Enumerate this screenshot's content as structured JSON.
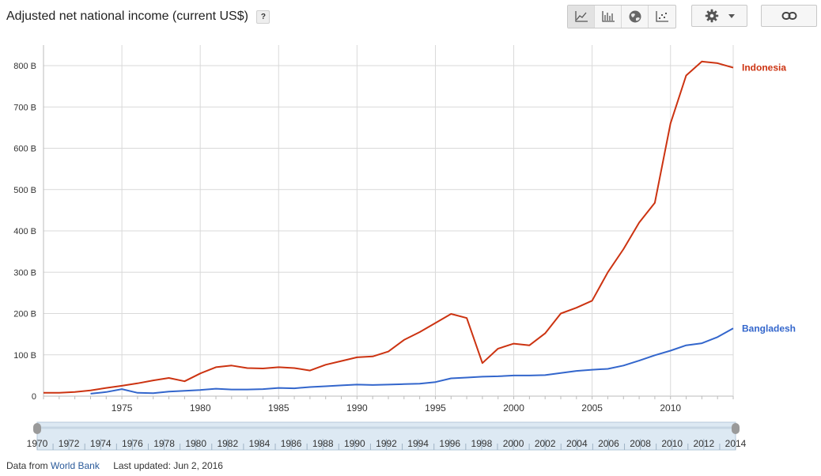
{
  "header": {
    "title": "Adjusted net national income (current US$)",
    "help_label": "?"
  },
  "toolbar": {
    "chart_types": [
      {
        "icon": "line-chart-icon",
        "active": true
      },
      {
        "icon": "bar-chart-icon",
        "active": false
      },
      {
        "icon": "globe-icon",
        "active": false
      },
      {
        "icon": "scatter-chart-icon",
        "active": false
      }
    ],
    "settings_icon": "gear-icon",
    "link_icon": "link-icon"
  },
  "footer": {
    "source_prefix": "Data from",
    "source_link": "World Bank",
    "updated": "Last updated: Jun 2, 2016"
  },
  "colors": {
    "indonesia": "#cc3311",
    "bangladesh": "#3366cc",
    "grid": "#d9d9d9",
    "range_fill": "#dde9f3"
  },
  "chart_data": {
    "type": "line",
    "title": "Adjusted net national income (current US$)",
    "xlim": [
      1970,
      2014
    ],
    "ylim": [
      0,
      850
    ],
    "x_ticks": [
      1975,
      1980,
      1985,
      1990,
      1995,
      2000,
      2005,
      2010
    ],
    "y_ticks": [
      0,
      100,
      200,
      300,
      400,
      500,
      600,
      700,
      800
    ],
    "y_tick_labels": [
      "0",
      "100 B",
      "200 B",
      "300 B",
      "400 B",
      "500 B",
      "600 B",
      "700 B",
      "800 B"
    ],
    "grid": true,
    "legend": "end-of-line labels",
    "series": [
      {
        "name": "Indonesia",
        "color": "#cc3311",
        "points": [
          [
            1970,
            8
          ],
          [
            1971,
            8
          ],
          [
            1972,
            10
          ],
          [
            1973,
            14
          ],
          [
            1974,
            20
          ],
          [
            1975,
            25
          ],
          [
            1976,
            31
          ],
          [
            1977,
            38
          ],
          [
            1978,
            44
          ],
          [
            1979,
            36
          ],
          [
            1980,
            55
          ],
          [
            1981,
            70
          ],
          [
            1982,
            74
          ],
          [
            1983,
            68
          ],
          [
            1984,
            67
          ],
          [
            1985,
            70
          ],
          [
            1986,
            68
          ],
          [
            1987,
            62
          ],
          [
            1988,
            76
          ],
          [
            1989,
            85
          ],
          [
            1990,
            94
          ],
          [
            1991,
            96
          ],
          [
            1992,
            108
          ],
          [
            1993,
            136
          ],
          [
            1994,
            155
          ],
          [
            1995,
            177
          ],
          [
            1996,
            199
          ],
          [
            1997,
            189
          ],
          [
            1998,
            80
          ],
          [
            1999,
            115
          ],
          [
            2000,
            127
          ],
          [
            2001,
            123
          ],
          [
            2002,
            152
          ],
          [
            2003,
            200
          ],
          [
            2004,
            214
          ],
          [
            2005,
            231
          ],
          [
            2006,
            300
          ],
          [
            2007,
            356
          ],
          [
            2008,
            420
          ],
          [
            2009,
            468
          ],
          [
            2010,
            660
          ],
          [
            2011,
            776
          ],
          [
            2012,
            810
          ],
          [
            2013,
            806
          ],
          [
            2014,
            795
          ]
        ]
      },
      {
        "name": "Bangladesh",
        "color": "#3366cc",
        "points": [
          [
            1973,
            6
          ],
          [
            1974,
            10
          ],
          [
            1975,
            17
          ],
          [
            1976,
            8
          ],
          [
            1977,
            7
          ],
          [
            1978,
            11
          ],
          [
            1979,
            13
          ],
          [
            1980,
            15
          ],
          [
            1981,
            18
          ],
          [
            1982,
            16
          ],
          [
            1983,
            16
          ],
          [
            1984,
            17
          ],
          [
            1985,
            20
          ],
          [
            1986,
            19
          ],
          [
            1987,
            22
          ],
          [
            1988,
            24
          ],
          [
            1989,
            26
          ],
          [
            1990,
            28
          ],
          [
            1991,
            27
          ],
          [
            1992,
            28
          ],
          [
            1993,
            29
          ],
          [
            1994,
            30
          ],
          [
            1995,
            34
          ],
          [
            1996,
            43
          ],
          [
            1997,
            45
          ],
          [
            1998,
            47
          ],
          [
            1999,
            48
          ],
          [
            2000,
            50
          ],
          [
            2001,
            50
          ],
          [
            2002,
            51
          ],
          [
            2003,
            56
          ],
          [
            2004,
            61
          ],
          [
            2005,
            64
          ],
          [
            2006,
            66
          ],
          [
            2007,
            74
          ],
          [
            2008,
            86
          ],
          [
            2009,
            99
          ],
          [
            2010,
            110
          ],
          [
            2011,
            123
          ],
          [
            2012,
            128
          ],
          [
            2013,
            143
          ],
          [
            2014,
            164
          ]
        ]
      }
    ],
    "range_selector": {
      "start": 1970,
      "end": 2014,
      "labels": [
        "1970",
        "1972",
        "1974",
        "1976",
        "1978",
        "1980",
        "1982",
        "1984",
        "1986",
        "1988",
        "1990",
        "1992",
        "1994",
        "1996",
        "1998",
        "2000",
        "2002",
        "2004",
        "2006",
        "2008",
        "2010",
        "2012",
        "2014"
      ]
    }
  }
}
